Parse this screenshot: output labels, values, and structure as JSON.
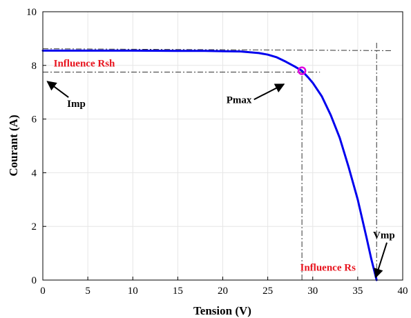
{
  "chart_data": {
    "type": "line",
    "xlabel": "Tension (V)",
    "ylabel": "Courant (A)",
    "xlim": [
      0,
      40
    ],
    "ylim": [
      0,
      10
    ],
    "xticks": [
      "0",
      "5",
      "10",
      "15",
      "20",
      "25",
      "30",
      "35",
      "40"
    ],
    "yticks": [
      "0",
      "2",
      "4",
      "6",
      "8",
      "10"
    ],
    "grid": true,
    "series": [
      {
        "color": "#0000ee",
        "x": [
          0,
          5,
          10,
          15,
          18,
          20,
          22,
          24,
          25,
          26,
          27,
          28,
          28.8,
          29.5,
          30,
          31,
          32,
          33,
          34,
          35,
          36,
          36.5,
          37.1
        ],
        "y": [
          8.55,
          8.55,
          8.55,
          8.54,
          8.54,
          8.53,
          8.52,
          8.46,
          8.4,
          8.3,
          8.14,
          7.96,
          7.8,
          7.55,
          7.35,
          6.85,
          6.15,
          5.3,
          4.2,
          3.0,
          1.55,
          0.8,
          0
        ]
      }
    ],
    "max_power_point": {
      "x": 28.8,
      "y": 7.8,
      "color": "#e000e0"
    },
    "reference_lines": [
      {
        "from": [
          0,
          8.62
        ],
        "to": [
          38.8,
          8.55
        ]
      },
      {
        "from": [
          0,
          7.75
        ],
        "to": [
          30.8,
          7.75
        ]
      },
      {
        "from": [
          28.8,
          0
        ],
        "to": [
          28.8,
          7.8
        ]
      },
      {
        "from": [
          37.1,
          0
        ],
        "to": [
          37.1,
          8.85
        ]
      }
    ],
    "annotations": [
      {
        "text": "Influence Rsh",
        "color": "#e8141e",
        "x": 1.2,
        "y": 7.95
      },
      {
        "text": "Imp",
        "color": "#000000",
        "x": 2.7,
        "y": 6.45,
        "arrow_to": [
          0.5,
          7.4
        ]
      },
      {
        "text": "Pmax",
        "color": "#000000",
        "x": 20.4,
        "y": 6.6,
        "arrow_to": [
          26.8,
          7.3
        ]
      },
      {
        "text": "Influence Rs",
        "color": "#e8141e",
        "x": 28.6,
        "y": 0.35
      },
      {
        "text": "Vmp",
        "color": "#000000",
        "x": 36.7,
        "y": 1.55,
        "arrow_to": [
          37.0,
          0.1
        ]
      }
    ]
  }
}
